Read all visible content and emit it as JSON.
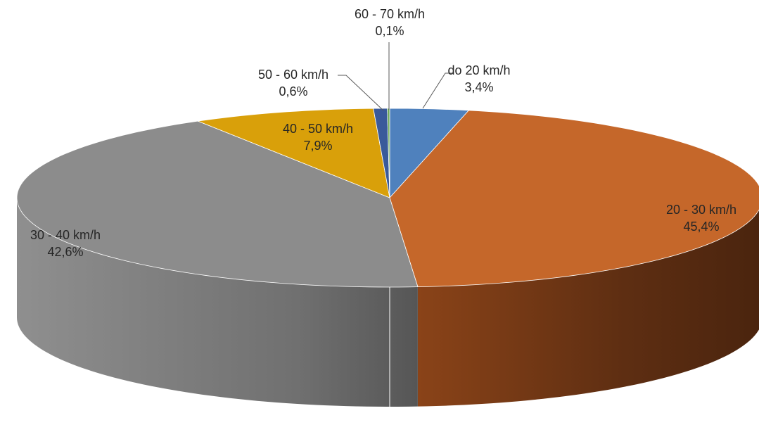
{
  "chart_data": {
    "type": "pie",
    "title": "",
    "style": "3d-exploded-tilted",
    "legend": "none",
    "slices": [
      {
        "label": "do 20 km/h",
        "value": 3.4,
        "value_label": "3,4%",
        "color": "#4f81bd",
        "side_color": "#2f5a8a"
      },
      {
        "label": "20 - 30 km/h",
        "value": 45.4,
        "value_label": "45,4%",
        "color": "#c5672a",
        "side_color": "#6e3414"
      },
      {
        "label": "30 - 40 km/h",
        "value": 42.6,
        "value_label": "42,6%",
        "color": "#8c8c8c",
        "side_color": "#6a6a6a"
      },
      {
        "label": "40 - 50 km/h",
        "value": 7.9,
        "value_label": "7,9%",
        "color": "#d9a00a",
        "side_color": "#9a7008"
      },
      {
        "label": "50 - 60 km/h",
        "value": 0.6,
        "value_label": "0,6%",
        "color": "#3a5a9a",
        "side_color": "#24386a"
      },
      {
        "label": "60 - 70 km/h",
        "value": 0.1,
        "value_label": "0,1%",
        "color": "#6aa84f",
        "side_color": "#3e6a2c"
      }
    ]
  }
}
